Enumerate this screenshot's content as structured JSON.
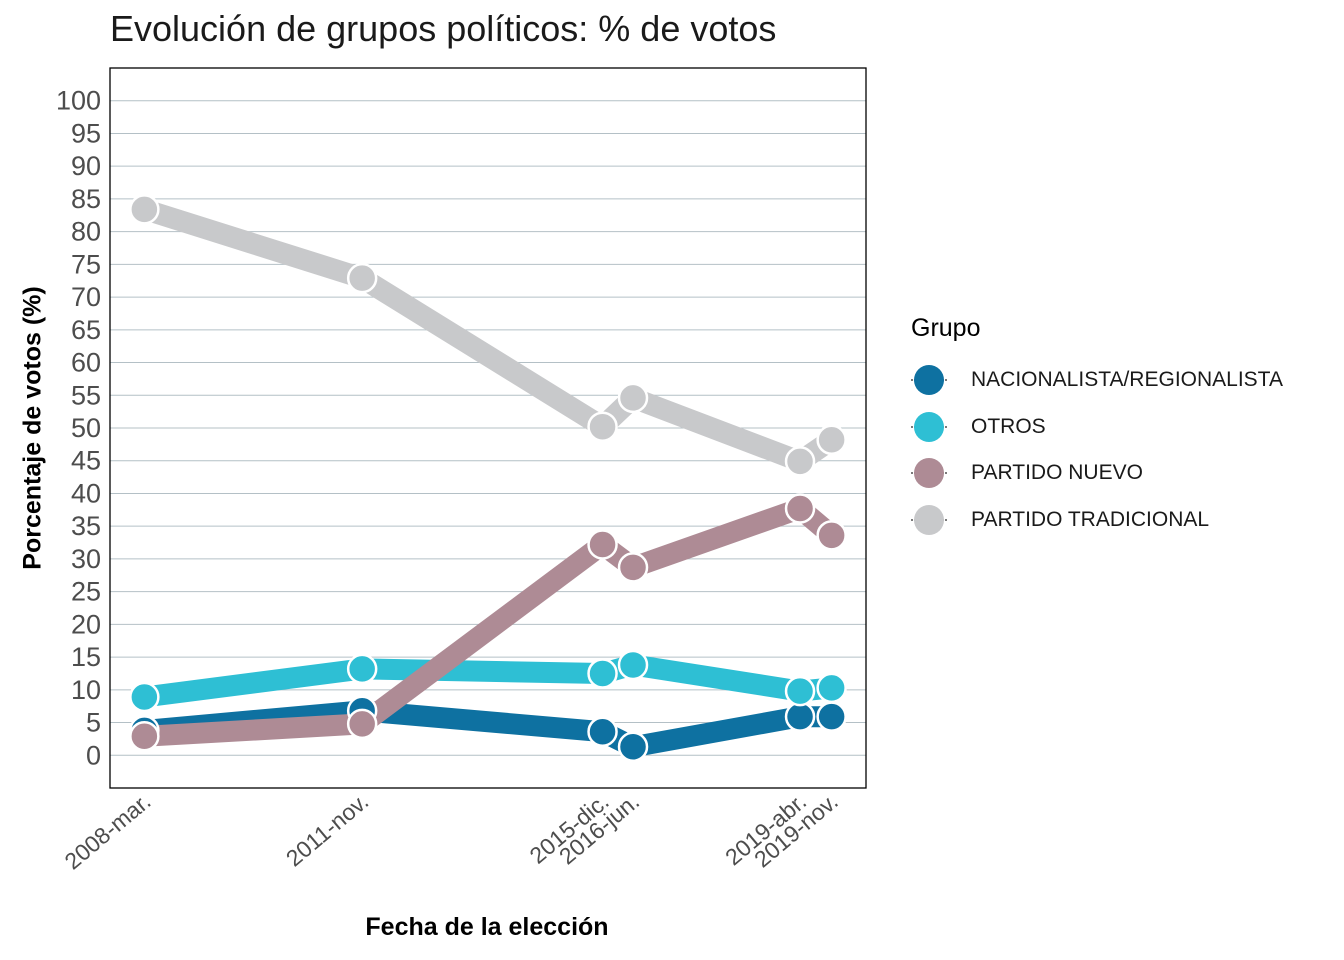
{
  "chart_data": {
    "type": "line",
    "title": "Evolución de grupos políticos: % de votos",
    "xlabel": "Fecha de la elección",
    "ylabel": "Porcentaje de votos (%)",
    "ylim": [
      -5,
      105
    ],
    "yticks": [
      0,
      5,
      10,
      15,
      20,
      25,
      30,
      35,
      40,
      45,
      50,
      55,
      60,
      65,
      70,
      75,
      80,
      85,
      90,
      95,
      100
    ],
    "x": [
      "2008-03-09",
      "2011-11-20",
      "2015-12-20",
      "2016-06-26",
      "2019-04-28",
      "2019-11-10"
    ],
    "x_tick_labels": [
      "2008-mar.",
      "2011-nov.",
      "2015-dic.",
      "2016-jun.",
      "2019-abr.",
      "2019-nov."
    ],
    "grid": "horizontal",
    "legend_position": "right",
    "legend_title": "Grupo",
    "series": [
      {
        "name": "NACIONALISTA/REGIONALISTA",
        "color": "#0E71A1",
        "values": [
          3.8,
          6.8,
          3.6,
          1.3,
          5.9,
          5.9
        ]
      },
      {
        "name": "OTROS",
        "color": "#2EBFD4",
        "values": [
          8.9,
          13.2,
          12.5,
          13.8,
          9.8,
          10.3
        ]
      },
      {
        "name": "PARTIDO NUEVO",
        "color": "#AE8B95",
        "values": [
          2.9,
          4.8,
          32.2,
          28.7,
          37.7,
          33.6
        ]
      },
      {
        "name": "PARTIDO TRADICIONAL",
        "color": "#C8C9CB",
        "values": [
          83.4,
          72.9,
          50.2,
          54.6,
          44.9,
          48.2
        ]
      }
    ]
  }
}
